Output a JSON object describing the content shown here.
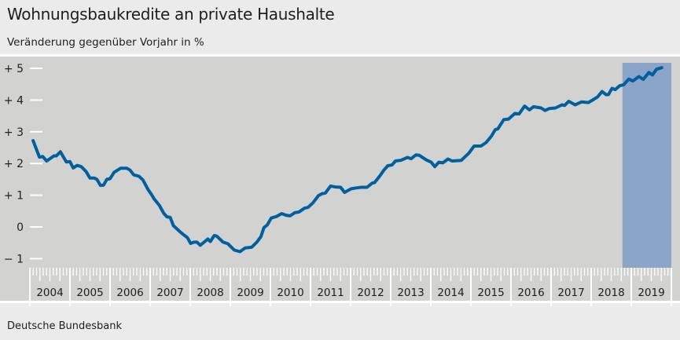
{
  "chart_data": {
    "type": "line",
    "title": "Wohnungsbaukredite an private Haushalte",
    "subtitle": "Veränderung gegenüber Vorjahr in %",
    "source": "Deutsche Bundesbank",
    "xlabel": "",
    "ylabel": "",
    "xlim": [
      2004,
      2020
    ],
    "ylim": [
      -1,
      5
    ],
    "y_ticks": [
      {
        "v": 5,
        "label": "+ 5"
      },
      {
        "v": 4,
        "label": "+ 4"
      },
      {
        "v": 3,
        "label": "+ 3"
      },
      {
        "v": 2,
        "label": "+ 2"
      },
      {
        "v": 1,
        "label": "+ 1"
      },
      {
        "v": 0,
        "label": "0"
      },
      {
        "v": -1,
        "label": "− 1"
      }
    ],
    "x_ticks": [
      "2004",
      "2005",
      "2006",
      "2007",
      "2008",
      "2009",
      "2010",
      "2011",
      "2012",
      "2013",
      "2014",
      "2015",
      "2016",
      "2017",
      "2018",
      "2019"
    ],
    "highlight_range": [
      2018.78,
      2020
    ],
    "colors": {
      "line": "#005f9e",
      "highlight": "#8ba5c8",
      "plot_bg": "#d2d2d1",
      "page_bg": "#ebebeb",
      "gridtick": "#ffffff"
    },
    "grid": false,
    "series": [
      {
        "x": [
          2004.08,
          2004.24,
          2004.32,
          2004.42,
          2004.6,
          2004.66,
          2004.76,
          2004.91,
          2005.0,
          2005.08,
          2005.18,
          2005.28,
          2005.4,
          2005.5,
          2005.61,
          2005.67,
          2005.76,
          2005.84,
          2005.92,
          2006.0,
          2006.1,
          2006.26,
          2006.42,
          2006.5,
          2006.59,
          2006.72,
          2006.82,
          2006.95,
          2007.03,
          2007.1,
          2007.23,
          2007.34,
          2007.42,
          2007.5,
          2007.58,
          2007.76,
          2007.93,
          2008.01,
          2008.09,
          2008.17,
          2008.25,
          2008.44,
          2008.5,
          2008.6,
          2008.66,
          2008.82,
          2008.94,
          2009.1,
          2009.24,
          2009.37,
          2009.53,
          2009.66,
          2009.76,
          2009.84,
          2009.92,
          2010.02,
          2010.15,
          2010.28,
          2010.39,
          2010.49,
          2010.61,
          2010.71,
          2010.85,
          2010.94,
          2011.06,
          2011.2,
          2011.29,
          2011.37,
          2011.5,
          2011.62,
          2011.75,
          2011.85,
          2012.01,
          2012.14,
          2012.27,
          2012.41,
          2012.54,
          2012.6,
          2012.73,
          2012.83,
          2012.93,
          2013.03,
          2013.12,
          2013.25,
          2013.42,
          2013.51,
          2013.63,
          2013.71,
          2013.88,
          2014.01,
          2014.1,
          2014.2,
          2014.3,
          2014.43,
          2014.53,
          2014.66,
          2014.76,
          2014.95,
          2015.08,
          2015.25,
          2015.38,
          2015.51,
          2015.61,
          2015.67,
          2015.82,
          2015.94,
          2016.1,
          2016.2,
          2016.34,
          2016.46,
          2016.56,
          2016.75,
          2016.85,
          2016.95,
          2017.11,
          2017.27,
          2017.34,
          2017.44,
          2017.6,
          2017.76,
          2017.93,
          2018.06,
          2018.16,
          2018.27,
          2018.37,
          2018.43,
          2018.52,
          2018.6,
          2018.71,
          2018.81,
          2018.94,
          2019.04,
          2019.19,
          2019.3,
          2019.44,
          2019.53,
          2019.63,
          2019.76
        ],
        "y": [
          2.72,
          2.2,
          2.22,
          2.08,
          2.24,
          2.24,
          2.37,
          2.05,
          2.06,
          1.86,
          1.94,
          1.9,
          1.75,
          1.54,
          1.54,
          1.5,
          1.31,
          1.32,
          1.5,
          1.52,
          1.72,
          1.85,
          1.85,
          1.79,
          1.64,
          1.6,
          1.48,
          1.17,
          1.03,
          0.88,
          0.68,
          0.43,
          0.32,
          0.3,
          0.04,
          -0.17,
          -0.34,
          -0.52,
          -0.48,
          -0.48,
          -0.58,
          -0.38,
          -0.46,
          -0.27,
          -0.29,
          -0.48,
          -0.53,
          -0.73,
          -0.78,
          -0.66,
          -0.64,
          -0.48,
          -0.31,
          -0.02,
          0.06,
          0.28,
          0.33,
          0.42,
          0.37,
          0.35,
          0.45,
          0.47,
          0.59,
          0.62,
          0.76,
          0.99,
          1.05,
          1.07,
          1.29,
          1.26,
          1.25,
          1.09,
          1.2,
          1.23,
          1.25,
          1.25,
          1.38,
          1.4,
          1.61,
          1.79,
          1.93,
          1.95,
          2.08,
          2.1,
          2.19,
          2.15,
          2.27,
          2.26,
          2.12,
          2.04,
          1.9,
          2.04,
          2.02,
          2.14,
          2.08,
          2.09,
          2.1,
          2.33,
          2.55,
          2.55,
          2.66,
          2.86,
          3.07,
          3.09,
          3.38,
          3.4,
          3.58,
          3.56,
          3.81,
          3.69,
          3.79,
          3.75,
          3.67,
          3.73,
          3.75,
          3.85,
          3.83,
          3.96,
          3.85,
          3.94,
          3.92,
          4.02,
          4.1,
          4.27,
          4.17,
          4.17,
          4.37,
          4.33,
          4.45,
          4.48,
          4.66,
          4.6,
          4.74,
          4.65,
          4.87,
          4.79,
          4.97,
          5.02
        ]
      }
    ]
  }
}
